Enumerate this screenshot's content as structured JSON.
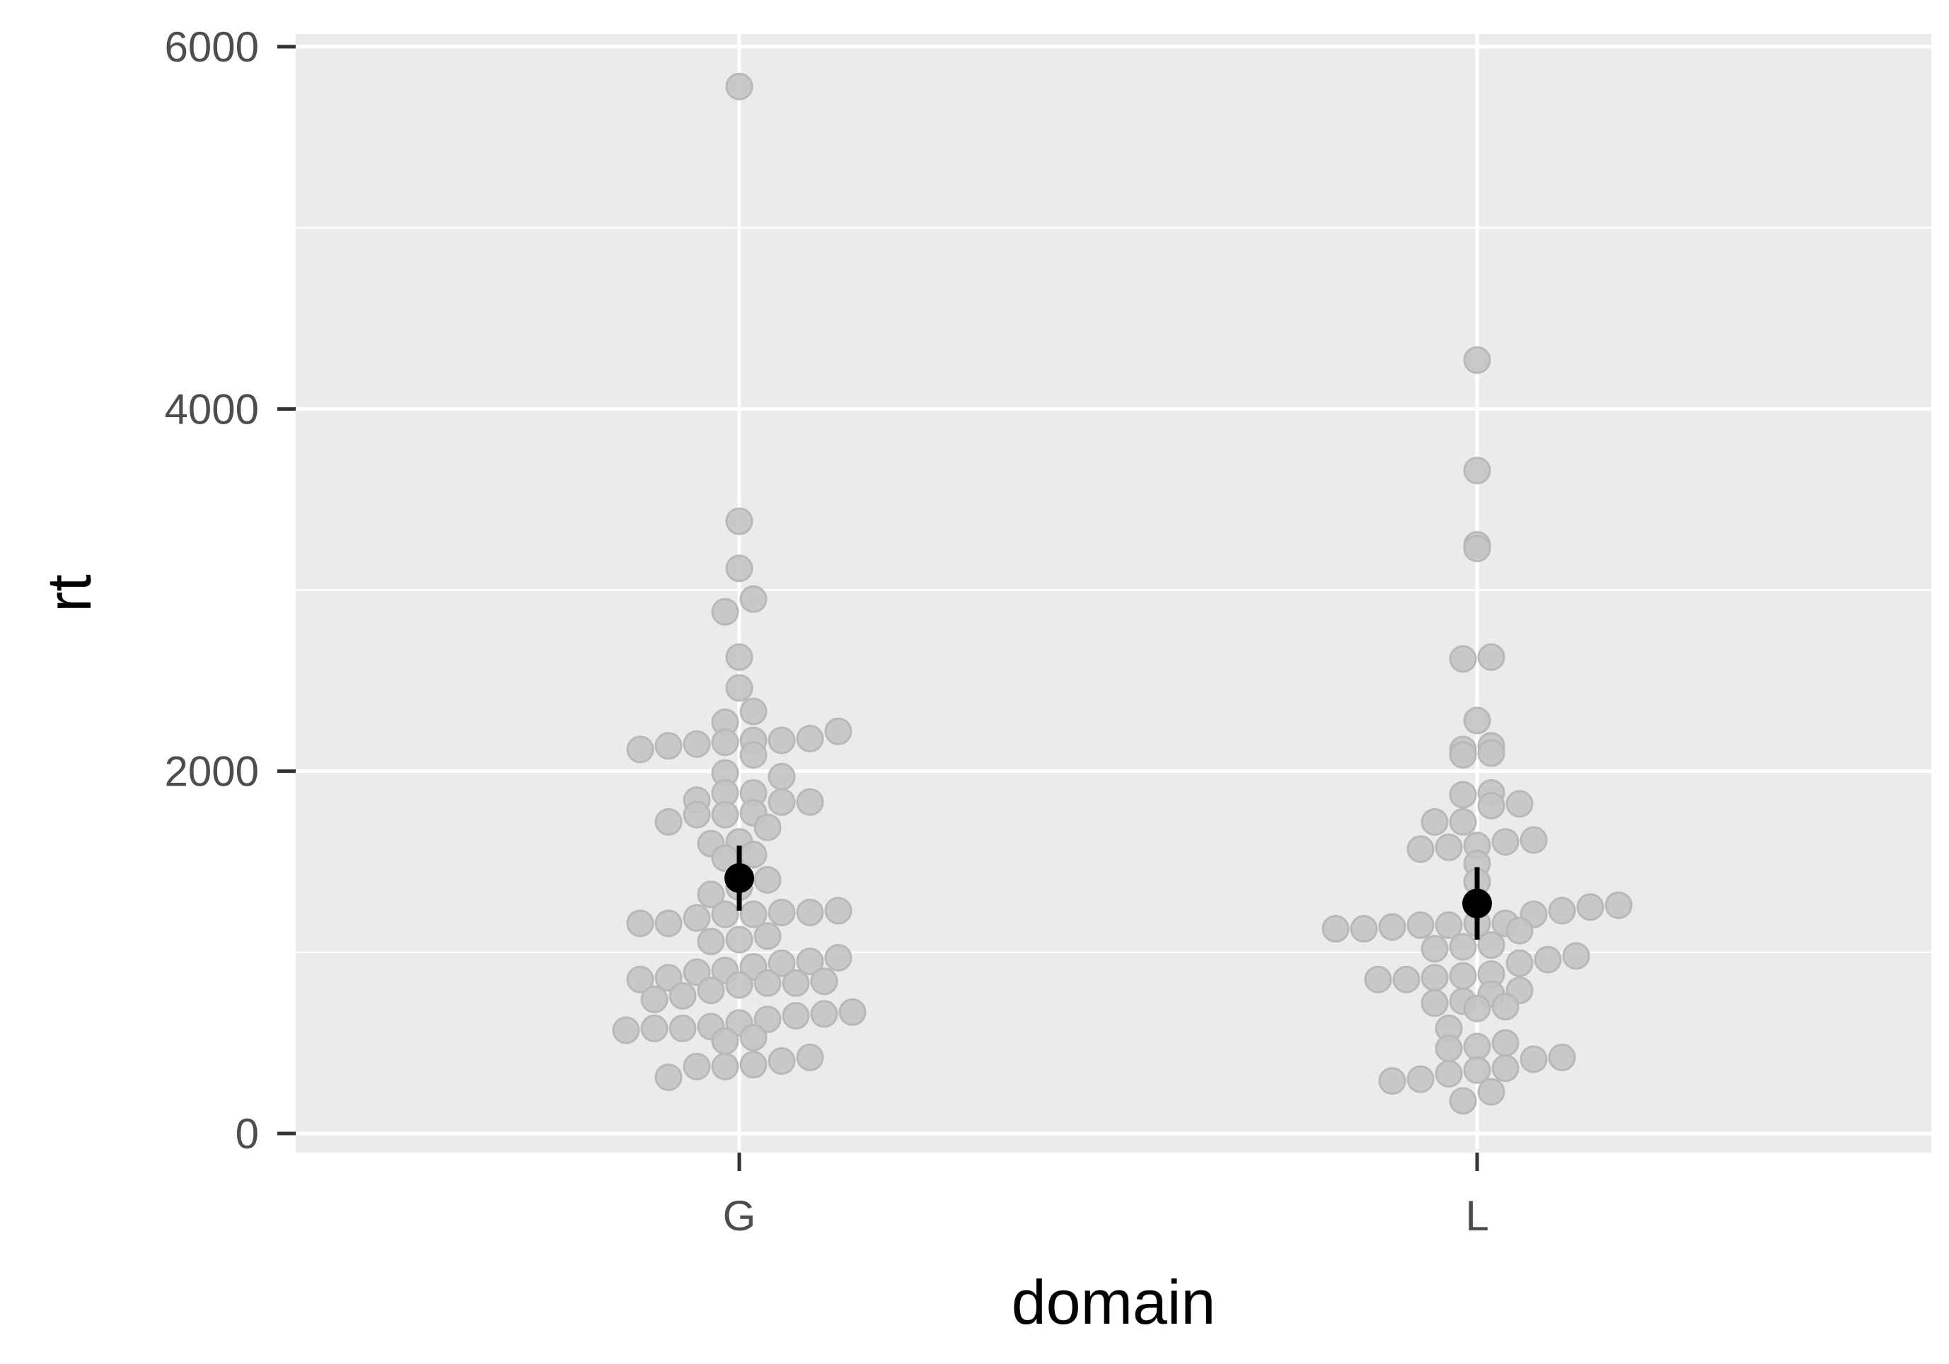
{
  "chart_data": {
    "type": "scatter",
    "subtype": "beeswarm with mean and error bars",
    "title": "",
    "xlabel": "domain",
    "ylabel": "rt",
    "categories": [
      "G",
      "L"
    ],
    "ylim": [
      -100,
      6100
    ],
    "y_ticks": [
      0,
      2000,
      4000,
      6000
    ],
    "y_tick_labels": [
      "0",
      "2000",
      "4000",
      "6000"
    ],
    "grid": true,
    "legend": "none",
    "colors": {
      "panel_background": "#ebebeb",
      "grid_line": "#ffffff",
      "point_fill": "#c4c4c4",
      "point_stroke": "#b8b8b8",
      "summary": "#000000",
      "tick_label": "#4d4d4d",
      "axis_title": "#000000"
    },
    "series": [
      {
        "category": "G",
        "values": [
          5780,
          3380,
          3120,
          2880,
          2950,
          2630,
          2460,
          2330,
          2270,
          2220,
          2170,
          2150,
          2120,
          2160,
          2090,
          2140,
          2180,
          2170,
          1990,
          1970,
          1880,
          1840,
          1830,
          1830,
          1880,
          1770,
          1760,
          1760,
          1690,
          1720,
          1600,
          1610,
          1540,
          1520,
          1400,
          1360,
          1320,
          1220,
          1210,
          1220,
          1190,
          1160,
          1160,
          1230,
          1210,
          1070,
          1060,
          1090,
          940,
          970,
          900,
          950,
          920,
          890,
          850,
          840,
          860,
          830,
          820,
          830,
          790,
          760,
          740,
          670,
          660,
          610,
          590,
          580,
          580,
          650,
          630,
          530,
          510,
          570,
          420,
          380,
          370,
          370,
          400,
          310
        ],
        "mean": 1410,
        "error_low": 1230,
        "error_high": 1590
      },
      {
        "category": "L",
        "values": [
          4270,
          3660,
          3230,
          3250,
          2620,
          2630,
          2280,
          2120,
          2090,
          2100,
          2140,
          1880,
          1870,
          1820,
          1810,
          1720,
          1720,
          1610,
          1590,
          1580,
          1570,
          1490,
          1620,
          1390,
          1250,
          1230,
          1210,
          1130,
          1120,
          1130,
          1150,
          1160,
          1160,
          1260,
          1140,
          1150,
          1030,
          1040,
          980,
          960,
          1020,
          940,
          880,
          860,
          850,
          850,
          870,
          790,
          770,
          730,
          720,
          700,
          690,
          580,
          480,
          500,
          470,
          420,
          410,
          350,
          360,
          330,
          300,
          290,
          230,
          180
        ],
        "mean": 1270,
        "error_low": 1070,
        "error_high": 1470
      }
    ]
  }
}
